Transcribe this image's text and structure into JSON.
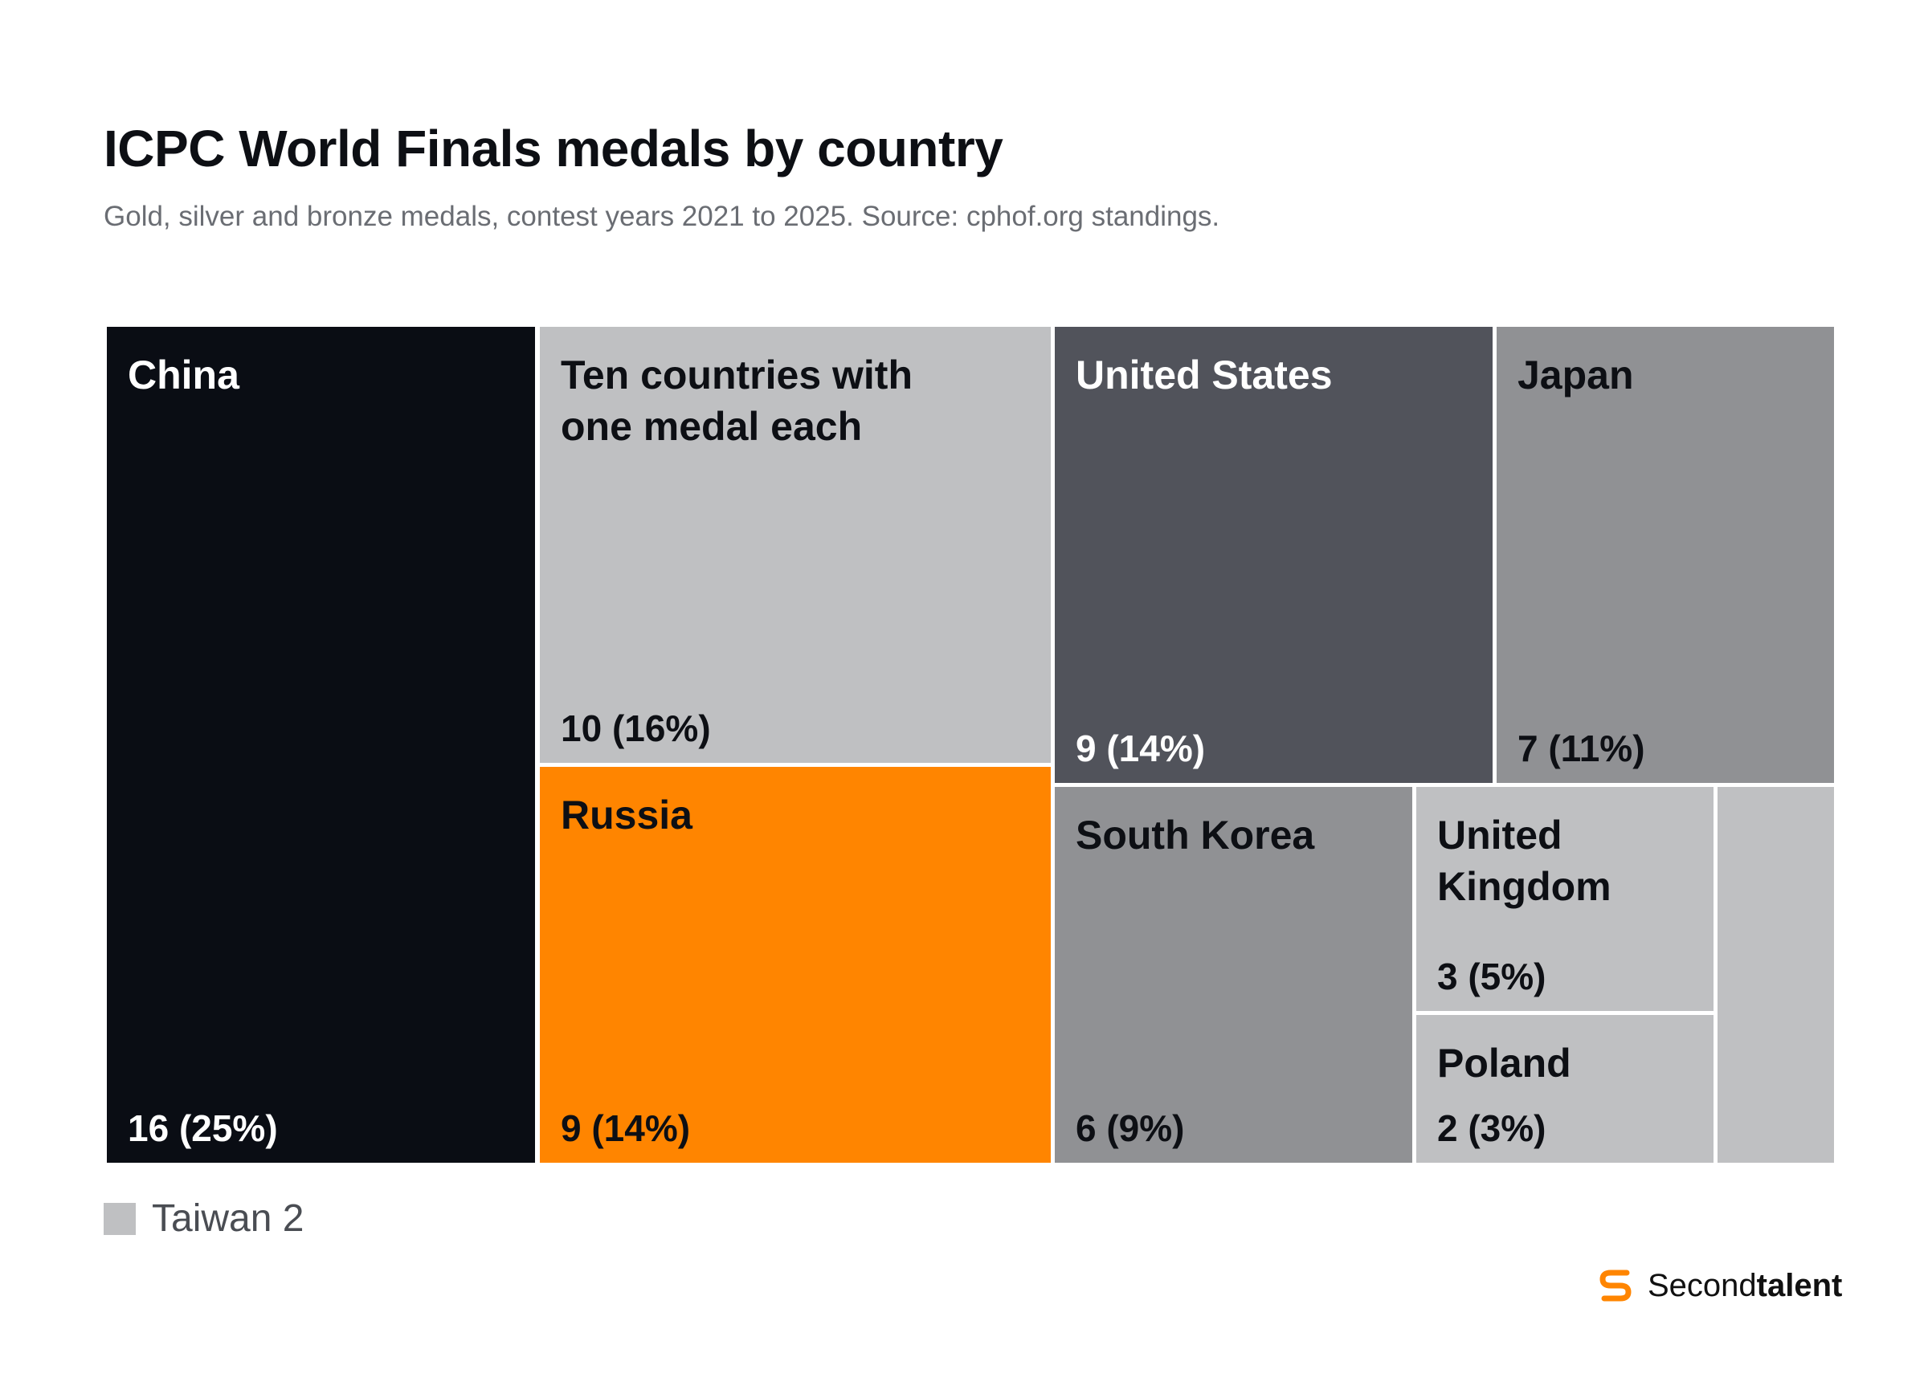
{
  "chart_data": {
    "type": "treemap",
    "title": "ICPC World Finals medals by country",
    "subtitle": "Gold, silver and bronze medals, contest years 2021 to 2025. Source: cphof.org standings.",
    "tiles": [
      {
        "name": "China",
        "value": 16,
        "value_label": "16 (25%)",
        "color": "#0a0d14",
        "text_color": "#ffffff"
      },
      {
        "name": "Ten countries with\none medal each",
        "value": 10,
        "value_label": "10 (16%)",
        "color": "#bfc0c2",
        "text_color": "#0d0f14"
      },
      {
        "name": "Russia",
        "value": 9,
        "value_label": "9 (14%)",
        "color": "#ff8500",
        "text_color": "#0d0f14"
      },
      {
        "name": "United States",
        "value": 9,
        "value_label": "9 (14%)",
        "color": "#51535b",
        "text_color": "#ffffff"
      },
      {
        "name": "Japan",
        "value": 7,
        "value_label": "7 (11%)",
        "color": "#909194",
        "text_color": "#0d0f14"
      },
      {
        "name": "South Korea",
        "value": 6,
        "value_label": "6 (9%)",
        "color": "#909194",
        "text_color": "#0d0f14"
      },
      {
        "name": "United\nKingdom",
        "value": 3,
        "value_label": "3 (5%)",
        "color": "#bfc0c2",
        "text_color": "#0d0f14"
      },
      {
        "name": "Poland",
        "value": 2,
        "value_label": "2 (3%)",
        "color": "#bfc0c2",
        "text_color": "#0d0f14"
      },
      {
        "name": "",
        "value": 2,
        "value_label": "",
        "color": "#bfc0c2",
        "text_color": "#0d0f14"
      }
    ],
    "legend": {
      "label": "Taiwan 2",
      "color": "#bfc0c2"
    }
  },
  "brand": {
    "name_regular": "Second",
    "name_bold": "talent",
    "accent": "#ff8500"
  }
}
